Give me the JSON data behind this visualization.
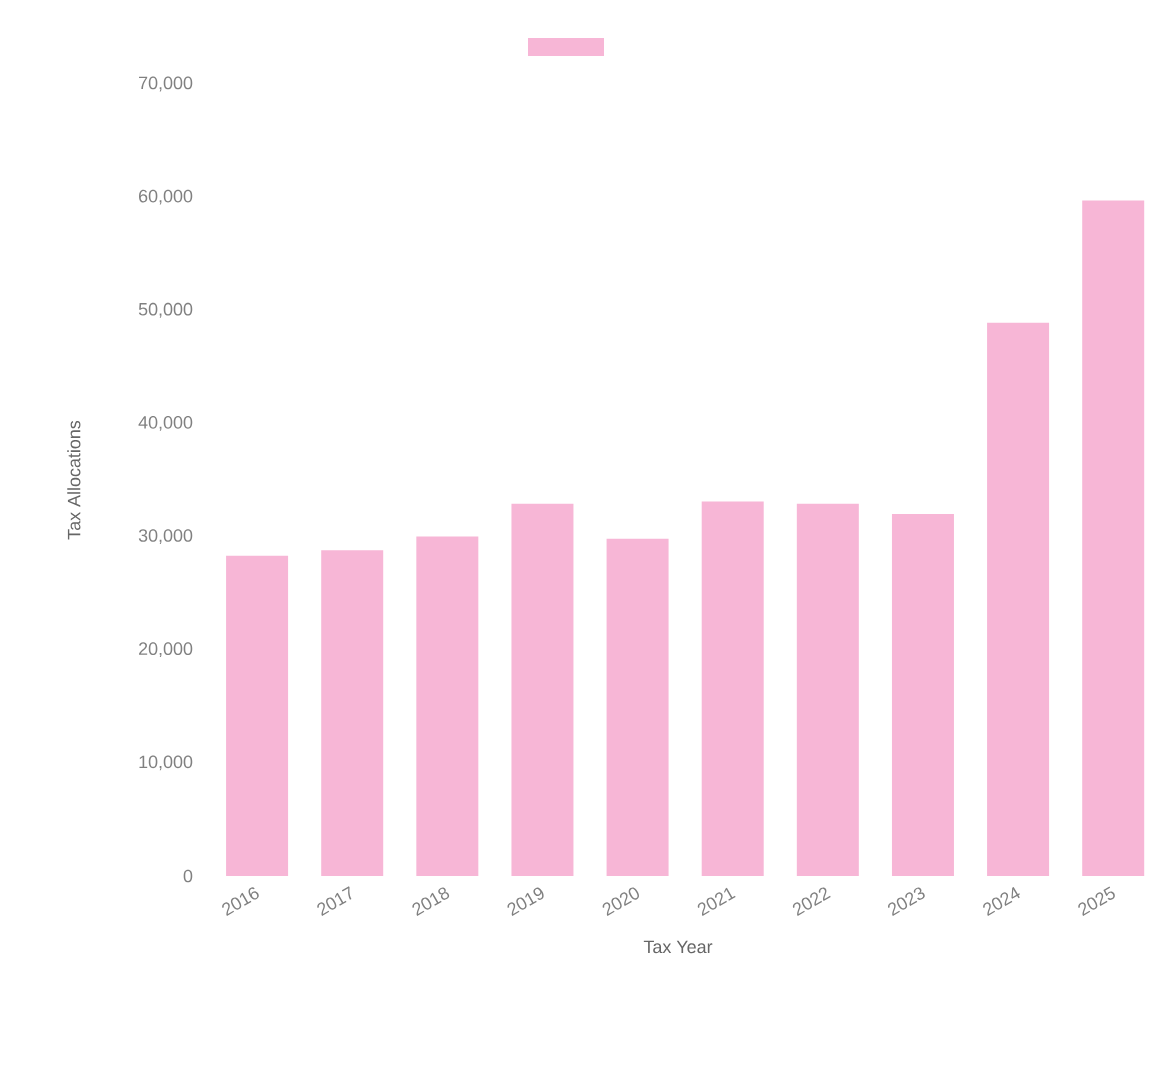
{
  "chart_data": {
    "type": "bar",
    "xlabel": "Tax Year",
    "ylabel": "Tax Allocations",
    "categories": [
      "2016",
      "2017",
      "2018",
      "2019",
      "2020",
      "2021",
      "2022",
      "2023",
      "2024",
      "2025"
    ],
    "values": [
      28300,
      28800,
      30000,
      32900,
      29800,
      33100,
      32900,
      32000,
      48900,
      59700
    ],
    "color": "#f7b6d6",
    "ylim": [
      0,
      70000
    ],
    "yticks": [
      0,
      {
        "value": 10000,
        "label": "10,000"
      },
      {
        "value": 20000,
        "label": "20,000"
      },
      {
        "value": 30000,
        "label": "30,000"
      },
      {
        "value": 40000,
        "label": "40,000"
      },
      {
        "value": 50000,
        "label": "50,000"
      },
      {
        "value": 60000,
        "label": "60,000"
      },
      {
        "value": 70000,
        "label": "70,000"
      }
    ],
    "grid": false
  }
}
